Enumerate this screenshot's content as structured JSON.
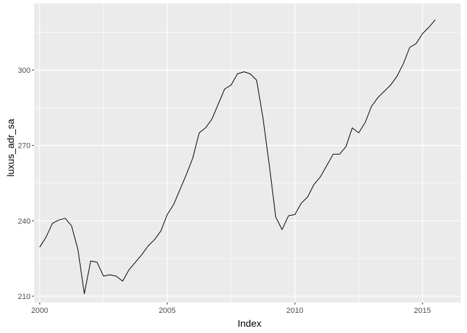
{
  "chart_data": {
    "type": "line",
    "title": "",
    "xlabel": "Index",
    "ylabel": "luxus_adr_sa",
    "xlim": [
      1999.78,
      2016.5
    ],
    "ylim": [
      207.5,
      326.5
    ],
    "x_ticks": [
      2000,
      2005,
      2010,
      2015
    ],
    "x_tick_labels": [
      "2000",
      "2005",
      "2010",
      "2015"
    ],
    "y_ticks": [
      210,
      240,
      270,
      300
    ],
    "y_tick_labels": [
      "210",
      "240",
      "270",
      "300"
    ],
    "grid": true,
    "legend": "none",
    "colors": {
      "panel_background": "#ebebeb",
      "grid_major": "#ffffff",
      "line": "#000000",
      "tick_text": "#4d4d4d",
      "axis_title": "#000000"
    },
    "series": [
      {
        "x": [
          2000.0,
          2000.25,
          2000.5,
          2000.75,
          2001.0,
          2001.25,
          2001.5,
          2001.75,
          2002.0,
          2002.25,
          2002.5,
          2002.75,
          2003.0,
          2003.25,
          2003.5,
          2003.75,
          2004.0,
          2004.25,
          2004.5,
          2004.75,
          2005.0,
          2005.25,
          2005.5,
          2005.75,
          2006.0,
          2006.25,
          2006.5,
          2006.75,
          2007.0,
          2007.25,
          2007.5,
          2007.75,
          2008.0,
          2008.25,
          2008.5,
          2008.75,
          2009.0,
          2009.25,
          2009.5,
          2009.75,
          2010.0,
          2010.25,
          2010.5,
          2010.75,
          2011.0,
          2011.25,
          2011.5,
          2011.75,
          2012.0,
          2012.25,
          2012.5,
          2012.75,
          2013.0,
          2013.25,
          2013.5,
          2013.75,
          2014.0,
          2014.25,
          2014.5,
          2014.75,
          2015.0,
          2015.25,
          2015.5
        ],
        "values": [
          229.5,
          233.5,
          239.0,
          240.3,
          241.0,
          238.0,
          228.5,
          211.0,
          224.0,
          223.5,
          218.0,
          218.5,
          218.0,
          216.0,
          220.5,
          223.5,
          226.5,
          230.0,
          232.5,
          236.0,
          242.5,
          246.5,
          252.5,
          258.5,
          265.0,
          275.0,
          277.0,
          280.5,
          286.5,
          292.5,
          294.0,
          298.5,
          299.3,
          298.5,
          296.0,
          281.0,
          262.0,
          241.5,
          236.5,
          242.0,
          242.5,
          247.0,
          249.5,
          254.5,
          257.5,
          262.0,
          266.5,
          266.5,
          269.5,
          277.0,
          275.0,
          279.0,
          285.5,
          289.0,
          291.5,
          294.0,
          297.5,
          302.5,
          309.0,
          310.5,
          314.5,
          317.0,
          320.0
        ]
      }
    ]
  }
}
